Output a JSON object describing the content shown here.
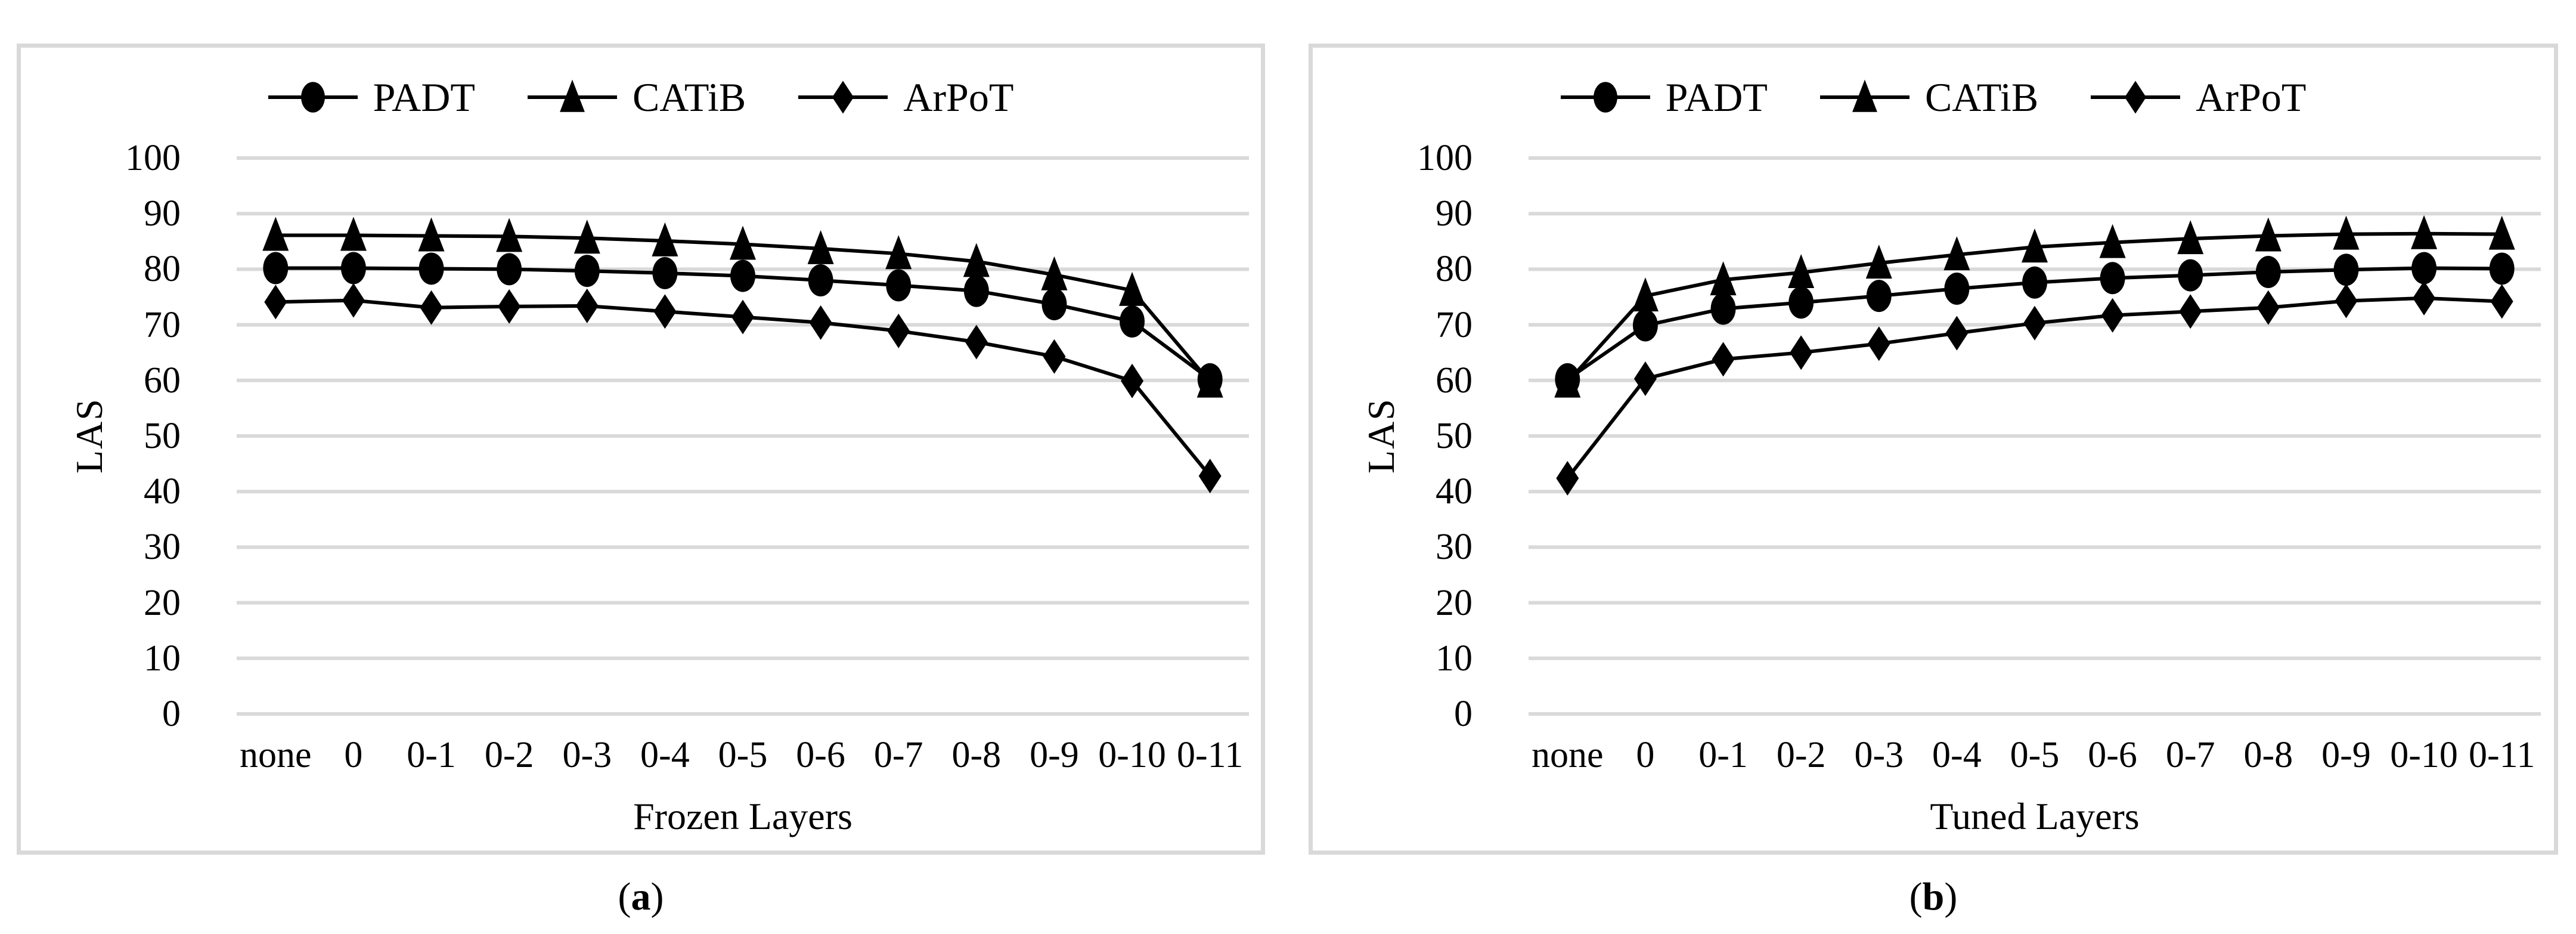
{
  "colors": {
    "series": "#000000",
    "gridline": "#d9d9d9",
    "panel_border": "#d9d9d9",
    "background": "#ffffff",
    "text": "#000000"
  },
  "chart_data": [
    {
      "type": "line",
      "panel_label": "a",
      "xlabel": "Frozen Layers",
      "ylabel": "LAS",
      "categories": [
        "none",
        "0",
        "0-1",
        "0-2",
        "0-3",
        "0-4",
        "0-5",
        "0-6",
        "0-7",
        "0-8",
        "0-9",
        "0-10",
        "0-11"
      ],
      "ylim": [
        0,
        100
      ],
      "ytick_step": 10,
      "grid": "horizontal",
      "legend_position": "top",
      "series": [
        {
          "name": "PADT",
          "marker": "circle",
          "color": "#000000",
          "values": [
            80.2,
            80.2,
            80.1,
            80.0,
            79.7,
            79.3,
            78.8,
            78.0,
            77.1,
            76.1,
            73.7,
            70.6,
            60.2
          ]
        },
        {
          "name": "CATiB",
          "marker": "triangle",
          "color": "#000000",
          "values": [
            86.1,
            86.1,
            86.0,
            85.9,
            85.6,
            85.1,
            84.5,
            83.7,
            82.8,
            81.4,
            79.0,
            76.2,
            59.7
          ]
        },
        {
          "name": "ArPoT",
          "marker": "diamond",
          "color": "#000000",
          "values": [
            74.1,
            74.4,
            73.1,
            73.3,
            73.4,
            72.4,
            71.4,
            70.4,
            68.9,
            66.9,
            64.3,
            59.9,
            42.8
          ]
        }
      ]
    },
    {
      "type": "line",
      "panel_label": "b",
      "xlabel": "Tuned Layers",
      "ylabel": "LAS",
      "categories": [
        "none",
        "0",
        "0-1",
        "0-2",
        "0-3",
        "0-4",
        "0-5",
        "0-6",
        "0-7",
        "0-8",
        "0-9",
        "0-10",
        "0-11"
      ],
      "ylim": [
        0,
        100
      ],
      "ytick_step": 10,
      "grid": "horizontal",
      "legend_position": "top",
      "series": [
        {
          "name": "PADT",
          "marker": "circle",
          "color": "#000000",
          "values": [
            60.2,
            69.9,
            72.9,
            74.0,
            75.2,
            76.5,
            77.6,
            78.4,
            78.9,
            79.5,
            79.9,
            80.2,
            80.1
          ]
        },
        {
          "name": "CATiB",
          "marker": "triangle",
          "color": "#000000",
          "values": [
            59.7,
            75.2,
            78.1,
            79.4,
            81.1,
            82.6,
            84.0,
            84.8,
            85.5,
            86.0,
            86.3,
            86.4,
            86.3
          ]
        },
        {
          "name": "ArPoT",
          "marker": "diamond",
          "color": "#000000",
          "values": [
            42.4,
            60.3,
            63.8,
            65.0,
            66.6,
            68.5,
            70.3,
            71.7,
            72.4,
            73.1,
            74.3,
            74.8,
            74.2
          ]
        }
      ]
    }
  ]
}
